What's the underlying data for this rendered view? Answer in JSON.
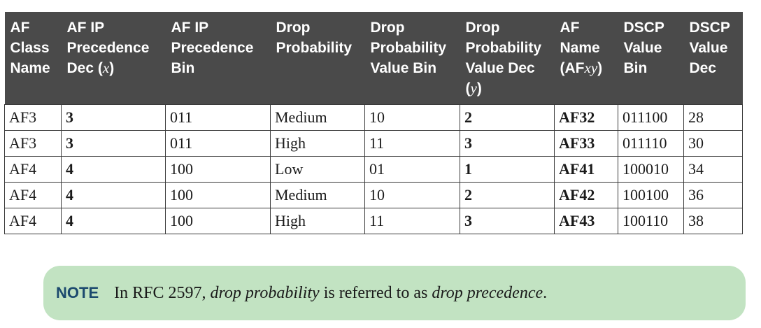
{
  "table": {
    "headers": [
      {
        "parts": [
          {
            "t": "AF"
          },
          {
            "br": true
          },
          {
            "t": "Class"
          },
          {
            "br": true
          },
          {
            "t": "Name"
          }
        ]
      },
      {
        "parts": [
          {
            "t": "AF IP"
          },
          {
            "br": true
          },
          {
            "t": "Precedence"
          },
          {
            "br": true
          },
          {
            "t": "Dec ("
          },
          {
            "t": "x",
            "i": true
          },
          {
            "t": ")"
          }
        ]
      },
      {
        "parts": [
          {
            "t": "AF IP"
          },
          {
            "br": true
          },
          {
            "t": "Precedence"
          },
          {
            "br": true
          },
          {
            "t": "Bin"
          }
        ]
      },
      {
        "parts": [
          {
            "t": "Drop"
          },
          {
            "br": true
          },
          {
            "t": "Probability"
          }
        ]
      },
      {
        "parts": [
          {
            "t": "Drop"
          },
          {
            "br": true
          },
          {
            "t": "Probability"
          },
          {
            "br": true
          },
          {
            "t": "Value Bin"
          }
        ]
      },
      {
        "parts": [
          {
            "t": "Drop"
          },
          {
            "br": true
          },
          {
            "t": "Probability"
          },
          {
            "br": true
          },
          {
            "t": "Value Dec"
          },
          {
            "br": true
          },
          {
            "t": "("
          },
          {
            "t": "y",
            "i": true
          },
          {
            "t": ")"
          }
        ]
      },
      {
        "parts": [
          {
            "t": "AF"
          },
          {
            "br": true
          },
          {
            "t": "Name"
          },
          {
            "br": true
          },
          {
            "t": "(AF"
          },
          {
            "t": "xy",
            "i": true
          },
          {
            "t": ")"
          }
        ]
      },
      {
        "parts": [
          {
            "t": "DSCP"
          },
          {
            "br": true
          },
          {
            "t": "Value"
          },
          {
            "br": true
          },
          {
            "t": "Bin"
          }
        ]
      },
      {
        "parts": [
          {
            "t": "DSCP"
          },
          {
            "br": true
          },
          {
            "t": "Value"
          },
          {
            "br": true
          },
          {
            "t": "Dec"
          }
        ]
      }
    ],
    "rows": [
      [
        "AF3",
        "3",
        "011",
        "Medium",
        "10",
        "2",
        "AF32",
        "011100",
        "28"
      ],
      [
        "AF3",
        "3",
        "011",
        "High",
        "11",
        "3",
        "AF33",
        "011110",
        "30"
      ],
      [
        "AF4",
        "4",
        "100",
        "Low",
        "01",
        "1",
        "AF41",
        "100010",
        "34"
      ],
      [
        "AF4",
        "4",
        "100",
        "Medium",
        "10",
        "2",
        "AF42",
        "100100",
        "36"
      ],
      [
        "AF4",
        "4",
        "100",
        "High",
        "11",
        "3",
        "AF43",
        "100110",
        "38"
      ]
    ]
  },
  "note": {
    "label": "NOTE",
    "text_before": "In RFC 2597, ",
    "term1": "drop probability",
    "text_middle": " is referred to as ",
    "term2": "drop precedence",
    "text_after": "."
  },
  "colors": {
    "header_bg": "#4a4a4a",
    "note_bg": "#c2e3c2",
    "note_label": "#1c4a6e"
  }
}
